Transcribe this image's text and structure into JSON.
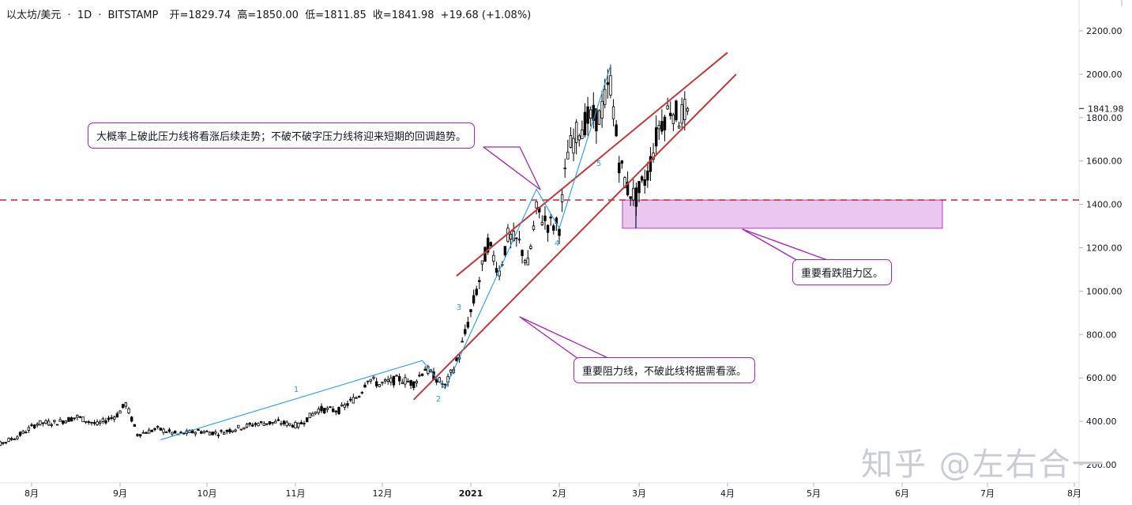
{
  "header": {
    "symbol": "以太坊/美元",
    "interval": "1D",
    "exchange": "BITSTAMP",
    "open": "开=1829.74",
    "high": "高=1850.00",
    "low": "低=1811.85",
    "close": "收=1841.98",
    "change": "+19.68 (+1.08%)"
  },
  "chart_data": {
    "type": "candlestick",
    "y_ticks": [
      "200.00",
      "400.00",
      "600.00",
      "800.00",
      "1000.00",
      "1200.00",
      "1400.00",
      "1600.00",
      "1800.00",
      "2000.00",
      "2200.00"
    ],
    "y_tick_values": [
      200,
      400,
      600,
      800,
      1000,
      1200,
      1400,
      1600,
      1800,
      2000,
      2200
    ],
    "x_ticks": [
      "8月",
      "9月",
      "10月",
      "11月",
      "12月",
      "2021",
      "2月",
      "3月",
      "4月",
      "5月",
      "6月",
      "7月",
      "8月"
    ],
    "last_price_label": "1841.98",
    "last_price": 1841.98,
    "horizontal_level": 1420,
    "resistance_zone": [
      1290,
      1420
    ],
    "wave_labels": [
      "1",
      "2",
      "3",
      "4",
      "5"
    ],
    "wave_points": [
      {
        "date": "2020-09-15",
        "price": 315
      },
      {
        "date": "2020-12-15",
        "price": 680
      },
      {
        "date": "2020-12-23",
        "price": 550
      },
      {
        "date": "2021-01-24",
        "price": 1470
      },
      {
        "date": "2021-02-01",
        "price": 1290
      },
      {
        "date": "2021-02-19",
        "price": 2040
      }
    ],
    "upper_trendline": [
      {
        "date": "2020-12-27",
        "price": 1070
      },
      {
        "date": "2021-04-01",
        "price": 2100
      }
    ],
    "lower_trendline": [
      {
        "date": "2020-12-12",
        "price": 500
      },
      {
        "date": "2021-04-04",
        "price": 2000
      }
    ],
    "series": [
      {
        "date": "2020-07-13",
        "value": 250
      },
      {
        "date": "2020-07-20",
        "value": 290
      },
      {
        "date": "2020-07-27",
        "value": 330
      },
      {
        "date": "2020-08-03",
        "value": 390
      },
      {
        "date": "2020-08-10",
        "value": 395
      },
      {
        "date": "2020-08-17",
        "value": 420
      },
      {
        "date": "2020-08-24",
        "value": 385
      },
      {
        "date": "2020-08-31",
        "value": 430
      },
      {
        "date": "2020-09-03",
        "value": 480
      },
      {
        "date": "2020-09-07",
        "value": 340
      },
      {
        "date": "2020-09-14",
        "value": 365
      },
      {
        "date": "2020-09-21",
        "value": 340
      },
      {
        "date": "2020-09-28",
        "value": 355
      },
      {
        "date": "2020-10-05",
        "value": 345
      },
      {
        "date": "2020-10-12",
        "value": 370
      },
      {
        "date": "2020-10-19",
        "value": 390
      },
      {
        "date": "2020-10-26",
        "value": 395
      },
      {
        "date": "2020-11-02",
        "value": 380
      },
      {
        "date": "2020-11-09",
        "value": 455
      },
      {
        "date": "2020-11-16",
        "value": 450
      },
      {
        "date": "2020-11-23",
        "value": 520
      },
      {
        "date": "2020-11-26",
        "value": 600
      },
      {
        "date": "2020-11-30",
        "value": 570
      },
      {
        "date": "2020-12-07",
        "value": 595
      },
      {
        "date": "2020-12-12",
        "value": 575
      },
      {
        "date": "2020-12-16",
        "value": 645
      },
      {
        "date": "2020-12-23",
        "value": 560
      },
      {
        "date": "2020-12-28",
        "value": 705
      },
      {
        "date": "2021-01-04",
        "value": 1050
      },
      {
        "date": "2021-01-07",
        "value": 1220
      },
      {
        "date": "2021-01-11",
        "value": 1090
      },
      {
        "date": "2021-01-14",
        "value": 1250
      },
      {
        "date": "2021-01-18",
        "value": 1220
      },
      {
        "date": "2021-01-21",
        "value": 1120
      },
      {
        "date": "2021-01-24",
        "value": 1370
      },
      {
        "date": "2021-01-28",
        "value": 1310
      },
      {
        "date": "2021-02-01",
        "value": 1300
      },
      {
        "date": "2021-02-04",
        "value": 1640
      },
      {
        "date": "2021-02-08",
        "value": 1750
      },
      {
        "date": "2021-02-11",
        "value": 1790
      },
      {
        "date": "2021-02-15",
        "value": 1800
      },
      {
        "date": "2021-02-19",
        "value": 1960
      },
      {
        "date": "2021-02-22",
        "value": 1600
      },
      {
        "date": "2021-02-25",
        "value": 1470
      },
      {
        "date": "2021-02-28",
        "value": 1430
      },
      {
        "date": "2021-03-04",
        "value": 1540
      },
      {
        "date": "2021-03-08",
        "value": 1760
      },
      {
        "date": "2021-03-12",
        "value": 1850
      },
      {
        "date": "2021-03-15",
        "value": 1800
      },
      {
        "date": "2021-03-18",
        "value": 1842
      }
    ]
  },
  "notes": {
    "top": "大概率上破此压力线将看涨后续走势；不破不破字压力线将迎来短期的回调趋势。",
    "right": "重要看跌阻力区。",
    "bottom": "重要阻力线，不破此线将据需看涨。"
  },
  "watermark": "知乎 @左右合一",
  "colors": {
    "trendline": "#c0393b",
    "dashed_level": "#c0393b",
    "zone_fill": "#e9c7ee",
    "zone_border": "#b33bc2",
    "wave_line": "#2e9be0",
    "wave_label": "#2e9be0",
    "callout_border": "#9c27b0",
    "candle": "#000000"
  }
}
